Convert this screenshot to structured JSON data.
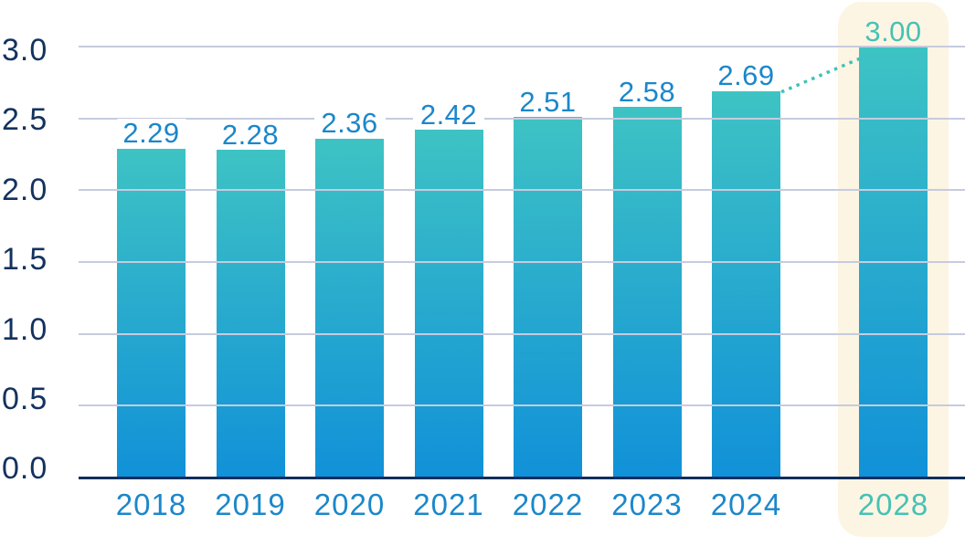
{
  "chart_data": {
    "type": "bar",
    "categories": [
      "2018",
      "2019",
      "2020",
      "2021",
      "2022",
      "2023",
      "2024",
      "2028"
    ],
    "values": [
      2.29,
      2.28,
      2.36,
      2.42,
      2.51,
      2.58,
      2.69,
      3.0
    ],
    "value_labels": [
      "2.29",
      "2.28",
      "2.36",
      "2.42",
      "2.51",
      "2.58",
      "2.69",
      "3.00"
    ],
    "title": "",
    "xlabel": "",
    "ylabel": "",
    "ylim": [
      0,
      3
    ],
    "ytick_labels": [
      "0.0",
      "0.5",
      "1.0",
      "1.5",
      "2.0",
      "2.5",
      "3.0"
    ],
    "grid": true,
    "legend": null,
    "highlighted_category": "2028",
    "labels_with_white_chip": [
      "2.29",
      "2.28",
      "2.36",
      "2.42",
      "2.51"
    ],
    "connector": {
      "from_category": "2024",
      "to_category": "2028",
      "style": "dotted"
    }
  },
  "colors": {
    "background": "#FFFFFF",
    "bar_gradient_top": "#3EC3C4",
    "bar_gradient_bottom": "#1191D8",
    "axis_label_navy": "#13325F",
    "value_label_blue": "#1B87CA",
    "highlight_teal": "#45C2B5",
    "gridline": "#C6CBDE",
    "baseline": "#0E2E5C",
    "highlight_card_bg": "#FDF5E3",
    "chip_bg": "#FFFFFF",
    "connector_teal": "#3FC2B8"
  }
}
